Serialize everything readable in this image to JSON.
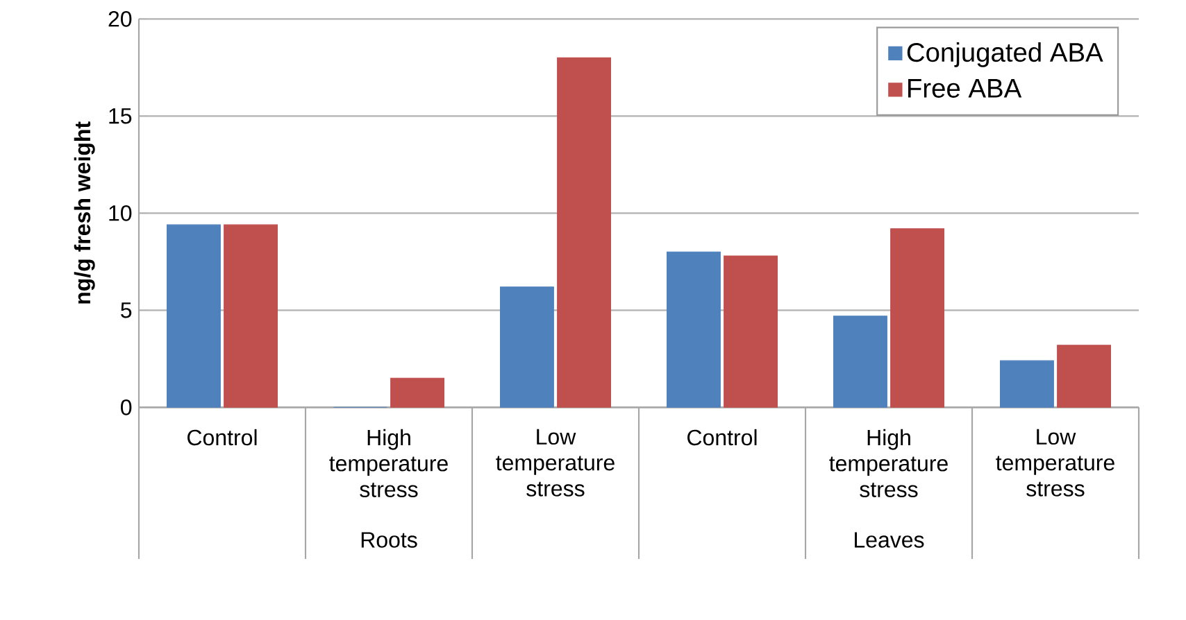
{
  "chart_data": {
    "type": "bar",
    "ylabel": "ng/g fresh weight",
    "categories": [
      "Control",
      "High temperature stress",
      "Low temperature stress",
      "Control",
      "High temperature stress",
      "Low temperature stress"
    ],
    "series": [
      {
        "name": "Conjugated ABA",
        "color": "#4f81bd",
        "values": [
          9.4,
          0.0,
          6.2,
          8.0,
          4.7,
          2.4
        ]
      },
      {
        "name": "Free ABA",
        "color": "#c0504d",
        "values": [
          9.4,
          1.5,
          18.0,
          7.8,
          9.2,
          3.2
        ]
      }
    ],
    "annotations": [
      "Roots",
      "Leaves"
    ],
    "ylim": [
      0,
      20
    ],
    "yticks": [
      0,
      5,
      10,
      15,
      20
    ],
    "grid": "y",
    "legend": "top right"
  }
}
